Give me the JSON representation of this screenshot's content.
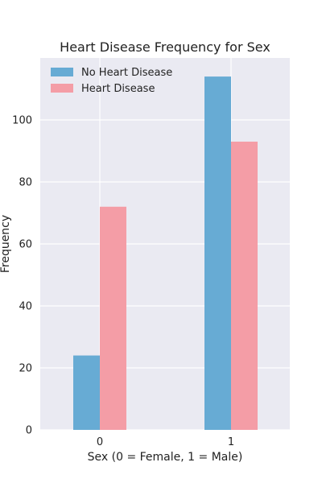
{
  "chart_data": {
    "type": "bar",
    "title": "Heart Disease Frequency for Sex",
    "xlabel": "Sex (0 = Female, 1 = Male)",
    "ylabel": "Frequency",
    "categories": [
      "0",
      "1"
    ],
    "series": [
      {
        "name": "No Heart Disease",
        "values": [
          24,
          114
        ],
        "color": "#67abd4"
      },
      {
        "name": "Heart Disease",
        "values": [
          72,
          93
        ],
        "color": "#f49da6"
      }
    ],
    "yticks": [
      0,
      20,
      40,
      60,
      80,
      100
    ],
    "ylim": [
      0,
      120
    ],
    "grid": true,
    "legend": "top-left"
  },
  "colors": {
    "plot_background": "#eaeaf2",
    "grid": "#ffffff"
  }
}
